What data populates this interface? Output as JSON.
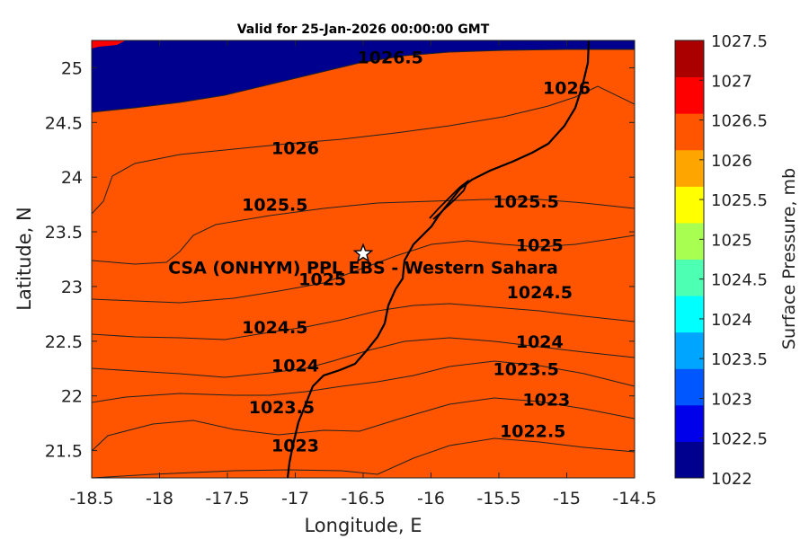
{
  "title": "Valid for 25-Jan-2026 00:00:00 GMT",
  "xlabel": "Longitude, E",
  "ylabel": "Latitude, N",
  "colorbar_label": "Surface Pressure, mb",
  "x_ticks": [
    "-18.5",
    "-18",
    "-17.5",
    "-17",
    "-16.5",
    "-16",
    "-15.5",
    "-15",
    "-14.5"
  ],
  "y_ticks": [
    "21.5",
    "22",
    "22.5",
    "23",
    "23.5",
    "24",
    "24.5",
    "25"
  ],
  "colorbar_ticks": [
    "1022",
    "1022.5",
    "1023",
    "1023.5",
    "1024",
    "1024.5",
    "1025",
    "1025.5",
    "1026",
    "1026.5",
    "1027",
    "1027.5"
  ],
  "site": {
    "name": "CSA (ONHYM) PPL EBS - Western Sahara",
    "lon": -16.5,
    "lat": 23.3
  },
  "colors": {
    "levels": [
      "#00008f",
      "#0000ea",
      "#0057ff",
      "#00a5ff",
      "#00ffff",
      "#4dffb2",
      "#a8ff52",
      "#ffff00",
      "#ffa500",
      "#ff5500",
      "#ff0000",
      "#aa0000"
    ]
  },
  "chart_data": {
    "type": "filled-contour",
    "xlim": [
      -18.5,
      -14.5
    ],
    "ylim": [
      21.25,
      25.25
    ],
    "clim": [
      1022,
      1027.5
    ],
    "contour_levels": [
      1022,
      1022.5,
      1023,
      1023.5,
      1024,
      1024.5,
      1025,
      1025.5,
      1026,
      1026.5,
      1027,
      1027.5
    ],
    "contour_labels": [
      {
        "text": "1026.5",
        "lon": -16.3,
        "lat": 25.1
      },
      {
        "text": "1026",
        "lon": -15.0,
        "lat": 24.82
      },
      {
        "text": "1026",
        "lon": -17.0,
        "lat": 24.27
      },
      {
        "text": "1025.5",
        "lon": -17.15,
        "lat": 23.75
      },
      {
        "text": "1025.5",
        "lon": -15.3,
        "lat": 23.78
      },
      {
        "text": "1025",
        "lon": -15.2,
        "lat": 23.38
      },
      {
        "text": "1025",
        "lon": -16.8,
        "lat": 23.07
      },
      {
        "text": "1024.5",
        "lon": -15.2,
        "lat": 22.95
      },
      {
        "text": "1024.5",
        "lon": -17.15,
        "lat": 22.63
      },
      {
        "text": "1024",
        "lon": -15.2,
        "lat": 22.5
      },
      {
        "text": "1024",
        "lon": -17.0,
        "lat": 22.28
      },
      {
        "text": "1023.5",
        "lon": -15.3,
        "lat": 22.25
      },
      {
        "text": "1023.5",
        "lon": -17.1,
        "lat": 21.9
      },
      {
        "text": "1023",
        "lon": -15.15,
        "lat": 21.97
      },
      {
        "text": "1022.5",
        "lon": -15.25,
        "lat": 21.68
      },
      {
        "text": "1023",
        "lon": -17.0,
        "lat": 21.55
      }
    ]
  }
}
